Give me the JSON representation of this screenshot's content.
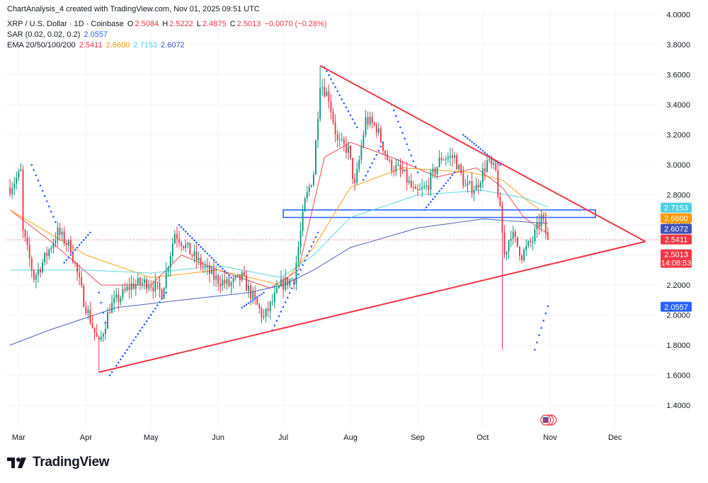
{
  "header": {
    "created_line": "ChartAnalysis_4 created with TradingView.com, Nov 01, 2025 09:51 UTC",
    "symbol": "XRP / U.S. Dollar · 1D · Coinbase",
    "ohlc": [
      {
        "label": "O",
        "value": "2.5084"
      },
      {
        "label": "H",
        "value": "2.5222"
      },
      {
        "label": "L",
        "value": "2.4875"
      },
      {
        "label": "C",
        "value": "2.5013"
      }
    ],
    "change": "−0.0070 (−0.28%)",
    "sar_label": "SAR (0.02, 0.02, 0.2)",
    "sar_value": "2.0557",
    "ema_label": "EMA 20/50/100/200",
    "ema_values": [
      "2.5411",
      "2.6600",
      "2.7153",
      "2.6072"
    ]
  },
  "colors": {
    "up": "#089981",
    "down": "#f23645",
    "ema20": "#f23645",
    "ema50": "#ff9800",
    "ema100": "#4dd0e1",
    "ema200": "#3f51b5",
    "sar": "#2962ff",
    "triangle": "#f23645",
    "zone": "#2962ff"
  },
  "brand": "TradingView",
  "chart_data": {
    "type": "candlestick",
    "y_axis": {
      "ticks": [
        "1.4000",
        "1.6000",
        "1.8000",
        "2.0000",
        "2.2000",
        "2.4000",
        "2.6000",
        "2.8000",
        "3.0000",
        "3.2000",
        "3.4000",
        "3.6000",
        "3.8000",
        "4.0000"
      ],
      "range": [
        1.25,
        4.05
      ]
    },
    "x_axis": {
      "ticks": [
        {
          "label": "Mar",
          "date": "2025-03-01"
        },
        {
          "label": "Apr",
          "date": "2025-04-01"
        },
        {
          "label": "May",
          "date": "2025-05-01"
        },
        {
          "label": "Jun",
          "date": "2025-06-01"
        },
        {
          "label": "Jul",
          "date": "2025-07-01"
        },
        {
          "label": "Aug",
          "date": "2025-08-01"
        },
        {
          "label": "Sep",
          "date": "2025-09-01"
        },
        {
          "label": "Oct",
          "date": "2025-10-01"
        },
        {
          "label": "Nov",
          "date": "2025-11-01"
        },
        {
          "label": "Dec",
          "date": "2025-12-01"
        }
      ]
    },
    "price_path": [
      [
        "2025-02-25",
        2.85
      ],
      [
        "2025-03-02",
        2.95
      ],
      [
        "2025-03-03",
        2.55
      ],
      [
        "2025-03-08",
        2.25
      ],
      [
        "2025-03-12",
        2.35
      ],
      [
        "2025-03-19",
        2.55
      ],
      [
        "2025-03-25",
        2.45
      ],
      [
        "2025-03-31",
        2.1
      ],
      [
        "2025-04-07",
        1.8
      ],
      [
        "2025-04-12",
        2.05
      ],
      [
        "2025-04-22",
        2.2
      ],
      [
        "2025-04-30",
        2.22
      ],
      [
        "2025-05-06",
        2.15
      ],
      [
        "2025-05-12",
        2.55
      ],
      [
        "2025-05-20",
        2.4
      ],
      [
        "2025-05-30",
        2.25
      ],
      [
        "2025-06-06",
        2.2
      ],
      [
        "2025-06-12",
        2.25
      ],
      [
        "2025-06-22",
        1.98
      ],
      [
        "2025-06-30",
        2.2
      ],
      [
        "2025-07-06",
        2.25
      ],
      [
        "2025-07-11",
        2.75
      ],
      [
        "2025-07-15",
        2.95
      ],
      [
        "2025-07-18",
        3.55
      ],
      [
        "2025-07-22",
        3.45
      ],
      [
        "2025-07-26",
        3.15
      ],
      [
        "2025-07-31",
        3.1
      ],
      [
        "2025-08-03",
        2.85
      ],
      [
        "2025-08-08",
        3.3
      ],
      [
        "2025-08-13",
        3.25
      ],
      [
        "2025-08-19",
        3.0
      ],
      [
        "2025-08-25",
        2.95
      ],
      [
        "2025-08-31",
        2.8
      ],
      [
        "2025-09-05",
        2.85
      ],
      [
        "2025-09-12",
        3.05
      ],
      [
        "2025-09-18",
        3.05
      ],
      [
        "2025-09-23",
        2.85
      ],
      [
        "2025-09-28",
        2.85
      ],
      [
        "2025-10-03",
        3.02
      ],
      [
        "2025-10-07",
        2.95
      ],
      [
        "2025-10-10",
        2.55
      ],
      [
        "2025-10-11",
        2.4
      ],
      [
        "2025-10-14",
        2.55
      ],
      [
        "2025-10-19",
        2.4
      ],
      [
        "2025-10-24",
        2.5
      ],
      [
        "2025-10-28",
        2.65
      ],
      [
        "2025-10-31",
        2.51
      ]
    ],
    "sar_segments": [
      {
        "start": [
          "2025-03-07",
          3.0
        ],
        "end": [
          "2025-03-18",
          2.62
        ]
      },
      {
        "start": [
          "2025-03-22",
          2.35
        ],
        "end": [
          "2025-04-03",
          2.55
        ]
      },
      {
        "start": [
          "2025-04-07",
          2.15
        ],
        "end": [
          "2025-04-10",
          1.95
        ]
      },
      {
        "start": [
          "2025-04-12",
          1.6
        ],
        "end": [
          "2025-05-08",
          2.15
        ]
      },
      {
        "start": [
          "2025-05-14",
          2.6
        ],
        "end": [
          "2025-06-07",
          2.25
        ]
      },
      {
        "start": [
          "2025-06-12",
          2.05
        ],
        "end": [
          "2025-06-22",
          2.15
        ]
      },
      {
        "start": [
          "2025-06-26",
          1.9
        ],
        "end": [
          "2025-07-17",
          2.55
        ]
      },
      {
        "start": [
          "2025-07-20",
          3.65
        ],
        "end": [
          "2025-08-04",
          3.25
        ]
      },
      {
        "start": [
          "2025-08-07",
          2.9
        ],
        "end": [
          "2025-08-16",
          3.15
        ]
      },
      {
        "start": [
          "2025-08-20",
          3.4
        ],
        "end": [
          "2025-09-01",
          2.95
        ]
      },
      {
        "start": [
          "2025-09-04",
          2.7
        ],
        "end": [
          "2025-09-18",
          2.95
        ]
      },
      {
        "start": [
          "2025-09-22",
          3.2
        ],
        "end": [
          "2025-10-09",
          3.0
        ]
      },
      {
        "start": [
          "2025-10-25",
          1.77
        ],
        "end": [
          "2025-10-31",
          2.06
        ]
      }
    ],
    "ema_lines": [
      {
        "name": "EMA 20",
        "last": 2.5411,
        "points": [
          [
            "2025-02-25",
            2.7
          ],
          [
            "2025-03-15",
            2.5
          ],
          [
            "2025-04-08",
            2.2
          ],
          [
            "2025-05-01",
            2.2
          ],
          [
            "2025-05-15",
            2.4
          ],
          [
            "2025-06-01",
            2.3
          ],
          [
            "2025-06-25",
            2.18
          ],
          [
            "2025-07-08",
            2.3
          ],
          [
            "2025-07-20",
            3.05
          ],
          [
            "2025-08-01",
            3.15
          ],
          [
            "2025-08-20",
            3.05
          ],
          [
            "2025-09-10",
            2.92
          ],
          [
            "2025-09-28",
            2.98
          ],
          [
            "2025-10-10",
            2.85
          ],
          [
            "2025-10-20",
            2.65
          ],
          [
            "2025-10-31",
            2.54
          ]
        ]
      },
      {
        "name": "EMA 50",
        "last": 2.66,
        "points": [
          [
            "2025-02-25",
            2.7
          ],
          [
            "2025-04-01",
            2.4
          ],
          [
            "2025-05-01",
            2.25
          ],
          [
            "2025-06-01",
            2.3
          ],
          [
            "2025-06-30",
            2.2
          ],
          [
            "2025-07-15",
            2.45
          ],
          [
            "2025-08-01",
            2.85
          ],
          [
            "2025-08-25",
            2.98
          ],
          [
            "2025-09-25",
            2.95
          ],
          [
            "2025-10-10",
            2.9
          ],
          [
            "2025-10-20",
            2.78
          ],
          [
            "2025-10-31",
            2.66
          ]
        ]
      },
      {
        "name": "EMA 100",
        "last": 2.7153,
        "points": [
          [
            "2025-02-25",
            2.3
          ],
          [
            "2025-04-01",
            2.3
          ],
          [
            "2025-05-01",
            2.28
          ],
          [
            "2025-06-01",
            2.33
          ],
          [
            "2025-06-30",
            2.25
          ],
          [
            "2025-07-15",
            2.4
          ],
          [
            "2025-08-01",
            2.65
          ],
          [
            "2025-09-01",
            2.8
          ],
          [
            "2025-10-01",
            2.83
          ],
          [
            "2025-10-20",
            2.78
          ],
          [
            "2025-10-31",
            2.72
          ]
        ]
      },
      {
        "name": "EMA 200",
        "last": 2.6072,
        "points": [
          [
            "2025-02-25",
            1.8
          ],
          [
            "2025-03-15",
            1.9
          ],
          [
            "2025-04-15",
            2.05
          ],
          [
            "2025-05-15",
            2.1
          ],
          [
            "2025-06-15",
            2.15
          ],
          [
            "2025-07-01",
            2.2
          ],
          [
            "2025-07-15",
            2.3
          ],
          [
            "2025-08-01",
            2.45
          ],
          [
            "2025-09-01",
            2.58
          ],
          [
            "2025-10-01",
            2.64
          ],
          [
            "2025-10-31",
            2.61
          ]
        ]
      }
    ],
    "trendlines": [
      {
        "name": "upper",
        "from": [
          "2025-07-18",
          3.66
        ],
        "to": [
          "2025-12-15",
          2.49
        ]
      },
      {
        "name": "lower",
        "from": [
          "2025-04-07",
          1.62
        ],
        "to": [
          "2025-12-15",
          2.49
        ]
      }
    ],
    "zone": {
      "from": "2025-07-01",
      "to": "2025-11-22",
      "low": 2.65,
      "high": 2.7
    },
    "current_price": 2.5013,
    "price_labels": [
      {
        "text": "2.7153",
        "value": 2.7153,
        "color": "#4dd0e1"
      },
      {
        "text": "2.6600",
        "value": 2.66,
        "color": "#ff9800"
      },
      {
        "text": "2.6072",
        "value": 2.6072,
        "color": "#3f51b5"
      },
      {
        "text": "2.5411",
        "value": 2.5411,
        "color": "#f23645"
      },
      {
        "text": "2.5013",
        "value": 2.5013,
        "color": "#f23645",
        "countdown": "14:08:53"
      },
      {
        "text": "2.0557",
        "value": 2.0557,
        "color": "#2962ff"
      }
    ]
  }
}
